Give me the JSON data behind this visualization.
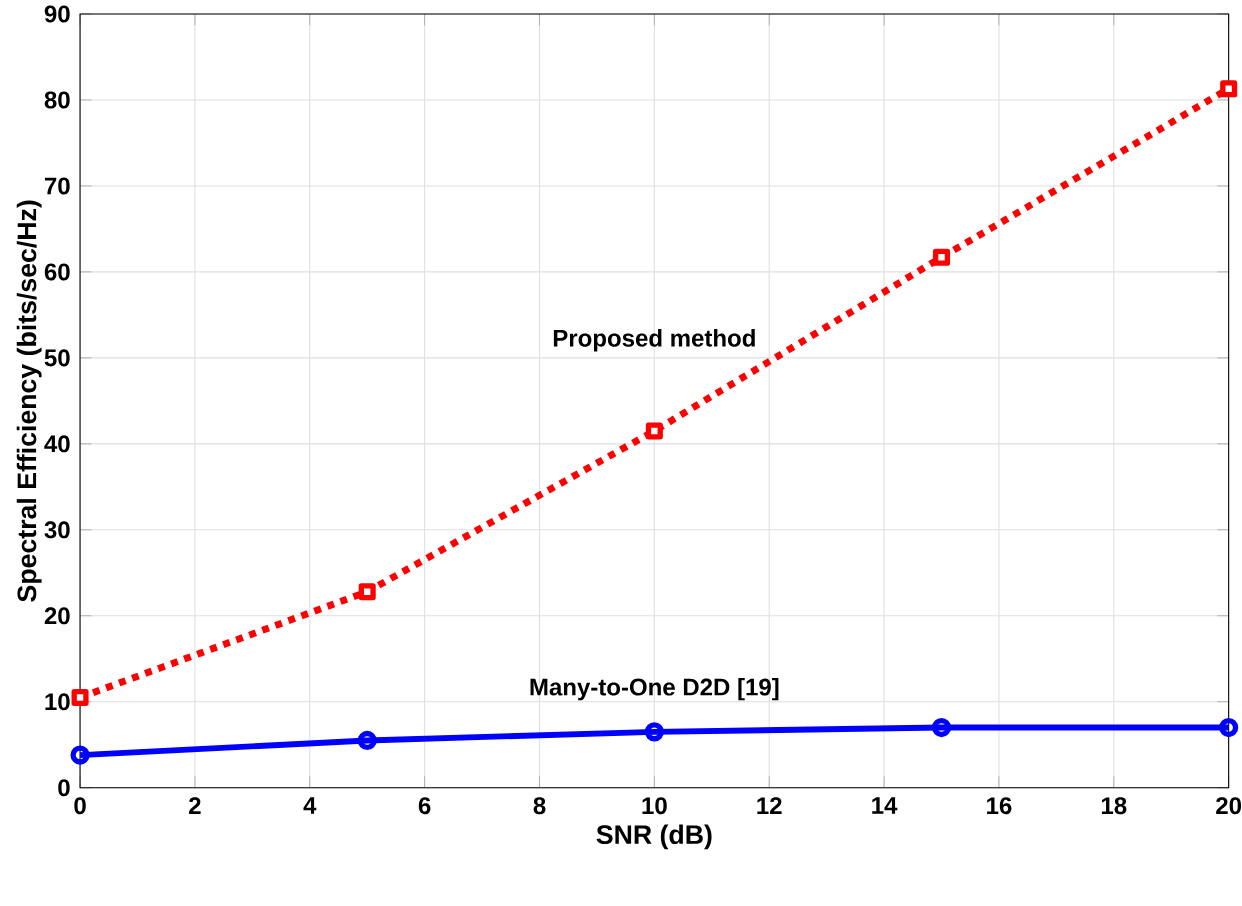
{
  "chart_data": {
    "type": "line",
    "xlabel": "SNR (dB)",
    "ylabel": "Spectral Efficiency (bits/sec/Hz)",
    "x": [
      0,
      5,
      10,
      15,
      20
    ],
    "series": [
      {
        "name": "Proposed method",
        "color": "#ff0000",
        "values": [
          10.5,
          22.8,
          41.5,
          61.7,
          81.3
        ],
        "marker": "square",
        "line_style": "dotted"
      },
      {
        "name": "Many-to-One D2D [19]",
        "color": "#0000ff",
        "values": [
          3.8,
          5.5,
          6.5,
          7.0,
          7.0
        ],
        "marker": "circle",
        "line_style": "solid"
      }
    ],
    "xlim": [
      0,
      20
    ],
    "xticks": [
      0,
      2,
      4,
      6,
      8,
      10,
      12,
      14,
      16,
      18,
      20
    ],
    "ylim": [
      0,
      90
    ],
    "yticks": [
      0,
      10,
      20,
      30,
      40,
      50,
      60,
      70,
      80,
      90
    ],
    "grid": true
  }
}
